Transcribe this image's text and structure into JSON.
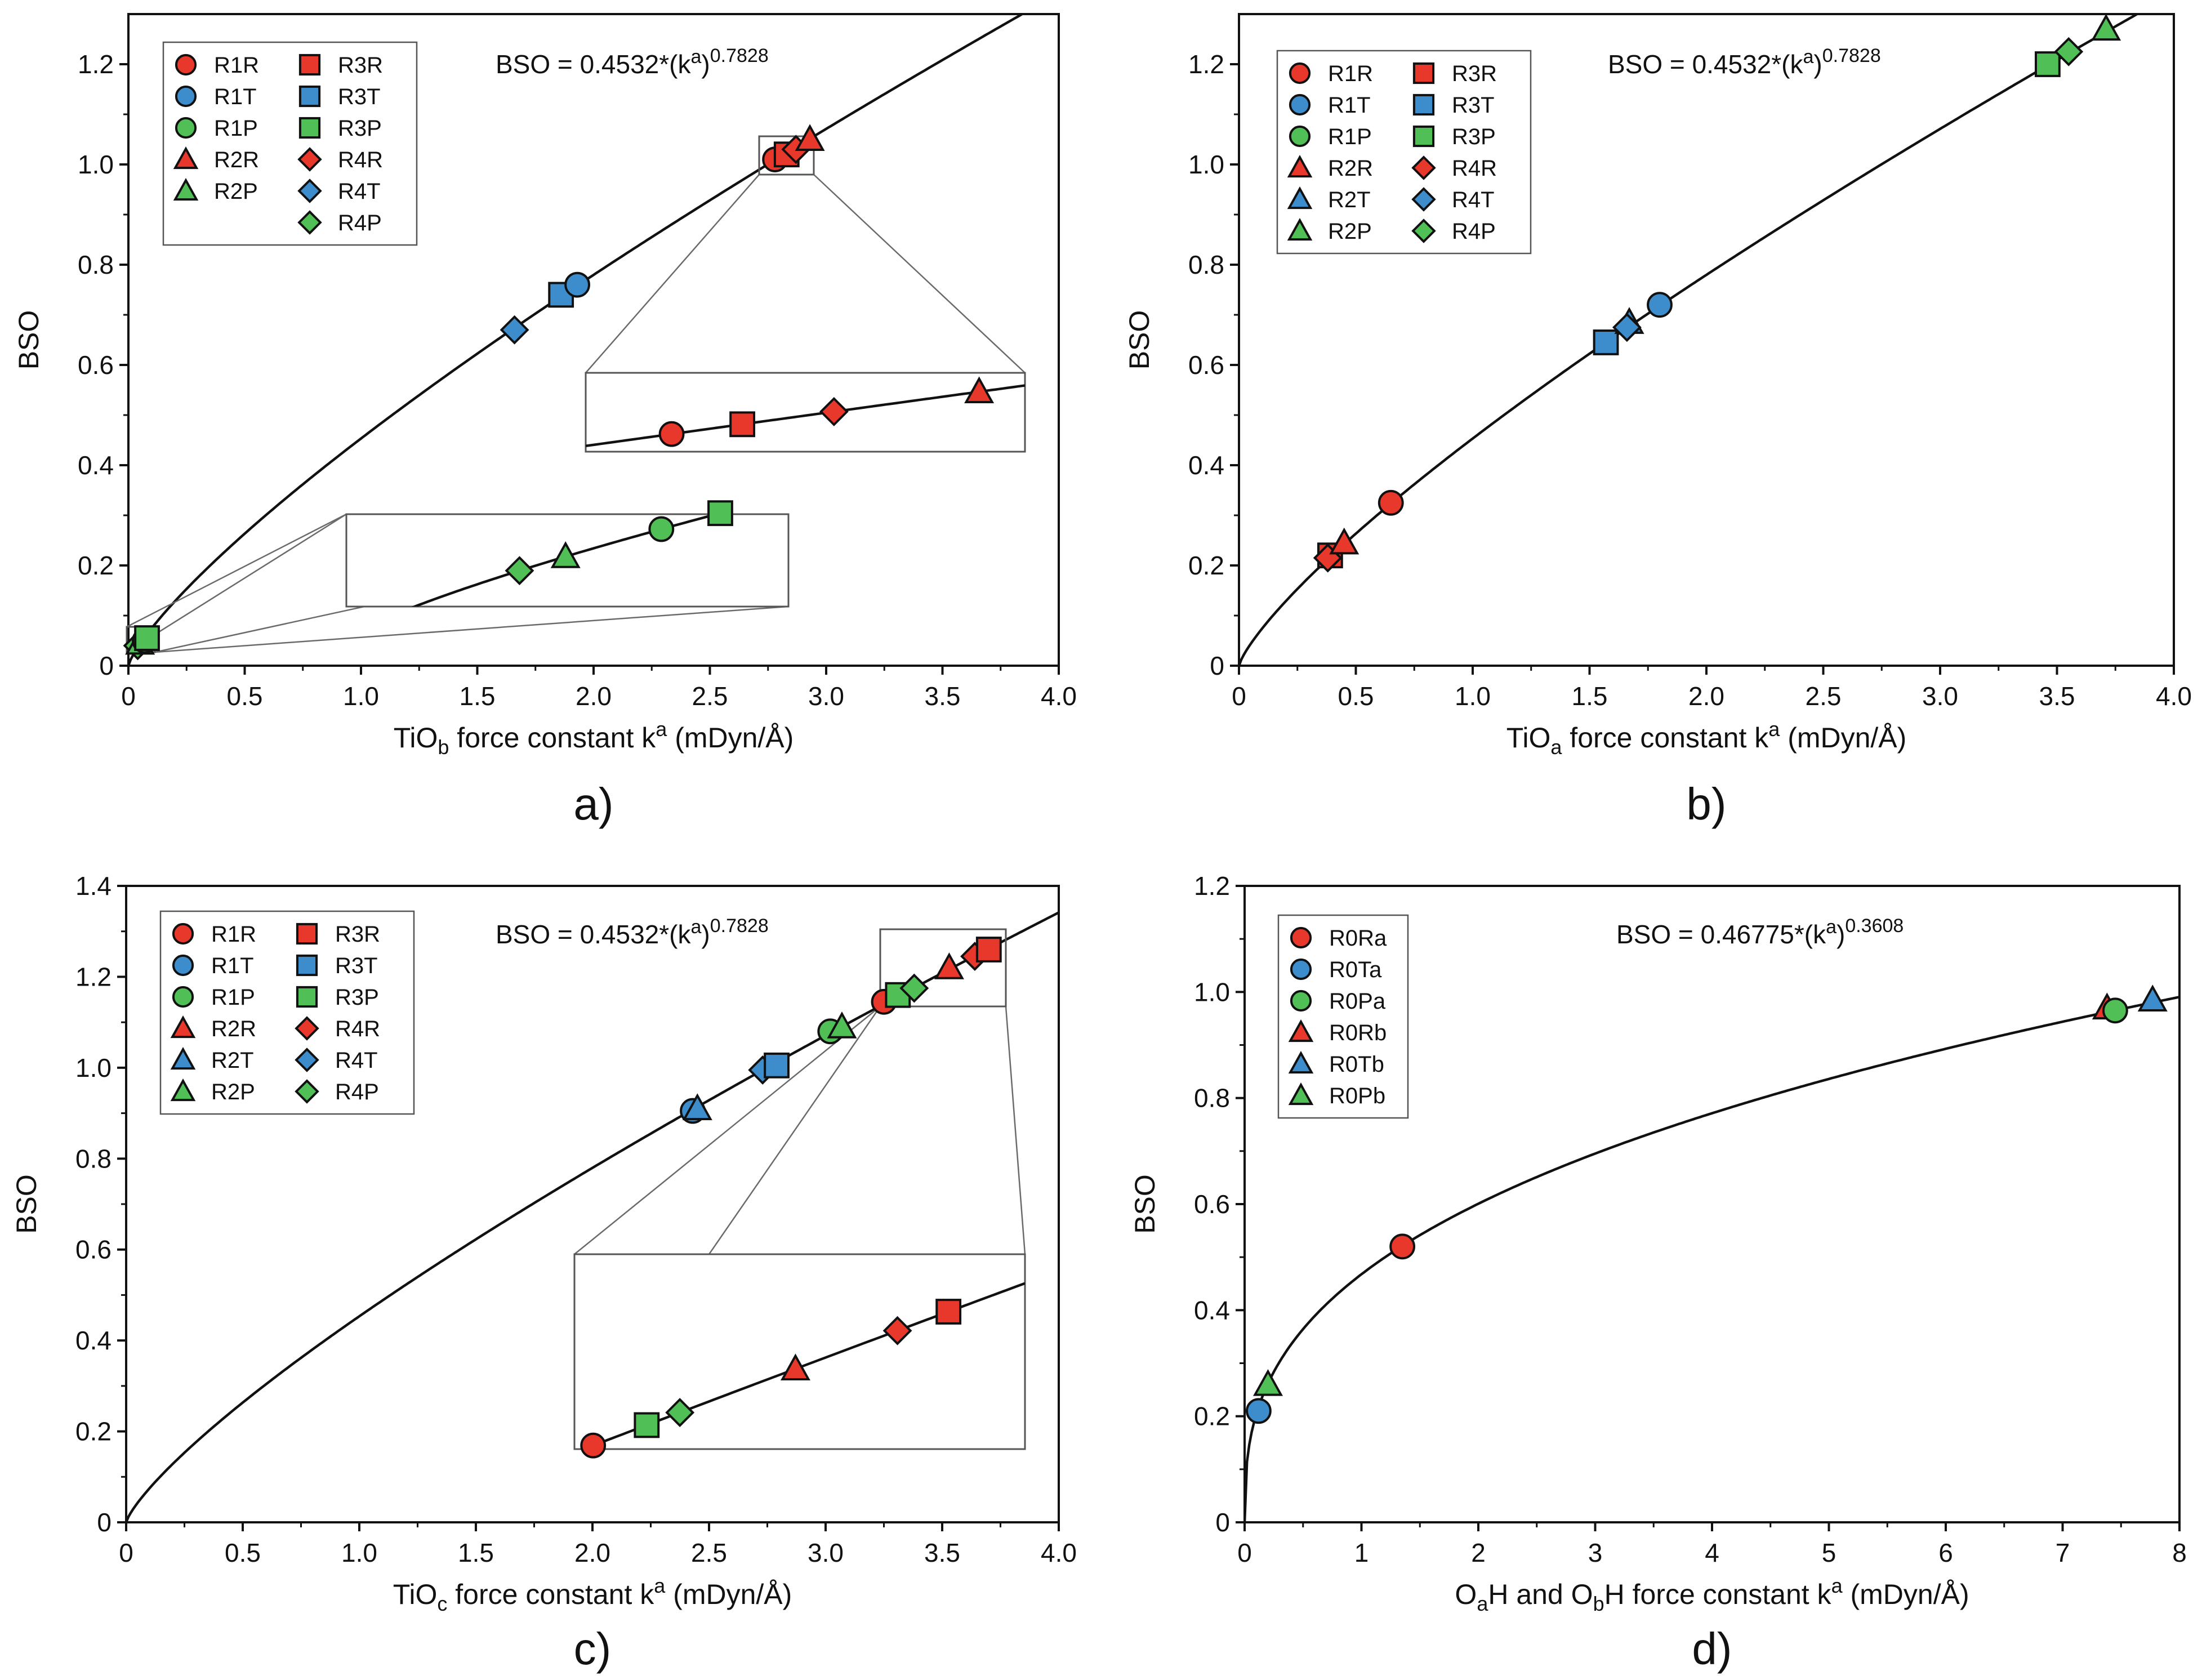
{
  "colors": {
    "R": "#e8382c",
    "T": "#3d8ccb",
    "P": "#4fbf56",
    "line": "#111111"
  },
  "chart_data": [
    {
      "id": "a",
      "type": "scatter",
      "panel_label": "a)",
      "formula": {
        "text": "BSO = 0.4532*(k",
        "sup_var": "a",
        "close": ")",
        "exp": "0.7828"
      },
      "fit": {
        "a": 0.4532,
        "b": 0.7828
      },
      "xlabel": {
        "pre": "TiO",
        "sub": "b",
        "mid": " force constant k",
        "sup": "a",
        "post": " (mDyn/Å)"
      },
      "ylabel": "BSO",
      "xlim": [
        0,
        4.0
      ],
      "ylim": [
        0,
        1.3
      ],
      "xticks": [
        "0",
        "0.5",
        "1.0",
        "1.5",
        "2.0",
        "2.5",
        "3.0",
        "3.5",
        "4.0"
      ],
      "yticks": [
        "0",
        "0.2",
        "0.4",
        "0.6",
        "0.8",
        "1.0",
        "1.2"
      ],
      "legend": {
        "columns": [
          [
            {
              "label": "R1R",
              "shape": "circle",
              "color": "R"
            },
            {
              "label": "R1T",
              "shape": "circle",
              "color": "T"
            },
            {
              "label": "R1P",
              "shape": "circle",
              "color": "P"
            },
            {
              "label": "R2R",
              "shape": "triangle",
              "color": "R"
            },
            {
              "label": "R2P",
              "shape": "triangle",
              "color": "P"
            }
          ],
          [
            {
              "label": "R3R",
              "shape": "square",
              "color": "R"
            },
            {
              "label": "R3T",
              "shape": "square",
              "color": "T"
            },
            {
              "label": "R3P",
              "shape": "square",
              "color": "P"
            },
            {
              "label": "R4R",
              "shape": "diamond",
              "color": "R"
            },
            {
              "label": "R4T",
              "shape": "diamond",
              "color": "T"
            },
            {
              "label": "R4P",
              "shape": "diamond",
              "color": "P"
            }
          ]
        ]
      },
      "points": [
        {
          "name": "R4T",
          "shape": "diamond",
          "color": "T",
          "x": 1.66,
          "y": 0.67
        },
        {
          "name": "R3T",
          "shape": "square",
          "color": "T",
          "x": 1.86,
          "y": 0.74
        },
        {
          "name": "R1T",
          "shape": "circle",
          "color": "T",
          "x": 1.93,
          "y": 0.76
        },
        {
          "name": "R1R",
          "shape": "circle",
          "color": "R",
          "x": 2.78,
          "y": 1.01
        },
        {
          "name": "R3R",
          "shape": "square",
          "color": "R",
          "x": 2.83,
          "y": 1.02
        },
        {
          "name": "R4R",
          "shape": "diamond",
          "color": "R",
          "x": 2.87,
          "y": 1.03
        },
        {
          "name": "R2R",
          "shape": "triangle",
          "color": "R",
          "x": 2.93,
          "y": 1.05
        },
        {
          "name": "R4P",
          "shape": "diamond",
          "color": "P",
          "x": 0.04,
          "y": 0.04
        },
        {
          "name": "R2P",
          "shape": "triangle",
          "color": "P",
          "x": 0.05,
          "y": 0.045
        },
        {
          "name": "R1P",
          "shape": "circle",
          "color": "P",
          "x": 0.07,
          "y": 0.05
        },
        {
          "name": "R3P",
          "shape": "square",
          "color": "P",
          "x": 0.08,
          "y": 0.055
        }
      ],
      "insets": [
        {
          "src_range": {
            "x": [
              2.7,
              2.93
            ],
            "y": [
              0.98,
              1.065
            ]
          },
          "box_range": {
            "x": [
              1.97,
              3.85
            ],
            "y": [
              0.43,
              0.59
            ]
          },
          "line_range": {
            "x": [
              2.7,
              2.94
            ],
            "y": [
              0.985,
              1.055
            ]
          },
          "points": [
            {
              "name": "R1R",
              "shape": "circle",
              "color": "R",
              "x": 2.745,
              "y": 1.003
            },
            {
              "name": "R3R",
              "shape": "square",
              "color": "R",
              "x": 2.782,
              "y": 1.013
            },
            {
              "name": "R4R",
              "shape": "diamond",
              "color": "R",
              "x": 2.83,
              "y": 1.027
            },
            {
              "name": "R2R",
              "shape": "triangle",
              "color": "R",
              "x": 2.906,
              "y": 1.049
            }
          ]
        },
        {
          "src_range": {
            "x": [
              0.0,
              0.12
            ],
            "y": [
              0.02,
              0.075
            ]
          },
          "box_range": {
            "x": [
              0.95,
              2.85
            ],
            "y": [
              0.12,
              0.3
            ]
          },
          "line_range": {
            "x": [
              0.0,
              0.12
            ],
            "y": [
              0.02,
              0.075
            ]
          },
          "points": [
            {
              "name": "R4P",
              "shape": "diamond",
              "color": "P",
              "x": 0.047,
              "y": 0.04
            },
            {
              "name": "R2P",
              "shape": "triangle",
              "color": "P",
              "x": 0.0595,
              "y": 0.0445
            },
            {
              "name": "R1P",
              "shape": "circle",
              "color": "P",
              "x": 0.0855,
              "y": 0.0515
            },
            {
              "name": "R3P",
              "shape": "square",
              "color": "P",
              "x": 0.1015,
              "y": 0.0565
            }
          ]
        }
      ]
    },
    {
      "id": "b",
      "type": "scatter",
      "panel_label": "b)",
      "formula": {
        "text": "BSO = 0.4532*(k",
        "sup_var": "a",
        "close": ")",
        "exp": "0.7828"
      },
      "fit": {
        "a": 0.4532,
        "b": 0.7828
      },
      "xlabel": {
        "pre": "TiO",
        "sub": "a",
        "mid": " force constant k",
        "sup": "a",
        "post": " (mDyn/Å)"
      },
      "ylabel": "BSO",
      "xlim": [
        0,
        4.0
      ],
      "ylim": [
        0,
        1.3
      ],
      "xticks": [
        "0",
        "0.5",
        "1.0",
        "1.5",
        "2.0",
        "2.5",
        "3.0",
        "3.5",
        "4.0"
      ],
      "yticks": [
        "0",
        "0.2",
        "0.4",
        "0.6",
        "0.8",
        "1.0",
        "1.2"
      ],
      "legend": {
        "columns": [
          [
            {
              "label": "R1R",
              "shape": "circle",
              "color": "R"
            },
            {
              "label": "R1T",
              "shape": "circle",
              "color": "T"
            },
            {
              "label": "R1P",
              "shape": "circle",
              "color": "P"
            },
            {
              "label": "R2R",
              "shape": "triangle",
              "color": "R"
            },
            {
              "label": "R2T",
              "shape": "triangle",
              "color": "T"
            },
            {
              "label": "R2P",
              "shape": "triangle",
              "color": "P"
            }
          ],
          [
            {
              "label": "R3R",
              "shape": "square",
              "color": "R"
            },
            {
              "label": "R3T",
              "shape": "square",
              "color": "T"
            },
            {
              "label": "R3P",
              "shape": "square",
              "color": "P"
            },
            {
              "label": "R4R",
              "shape": "diamond",
              "color": "R"
            },
            {
              "label": "R4T",
              "shape": "diamond",
              "color": "T"
            },
            {
              "label": "R4P",
              "shape": "diamond",
              "color": "P"
            }
          ]
        ]
      },
      "points": [
        {
          "name": "R3R",
          "shape": "square",
          "color": "R",
          "x": 0.39,
          "y": 0.22
        },
        {
          "name": "R4R",
          "shape": "diamond",
          "color": "R",
          "x": 0.38,
          "y": 0.215
        },
        {
          "name": "R2R",
          "shape": "triangle",
          "color": "R",
          "x": 0.45,
          "y": 0.245
        },
        {
          "name": "R1R",
          "shape": "circle",
          "color": "R",
          "x": 0.65,
          "y": 0.325
        },
        {
          "name": "R3T",
          "shape": "square",
          "color": "T",
          "x": 1.57,
          "y": 0.645
        },
        {
          "name": "R2T",
          "shape": "triangle",
          "color": "T",
          "x": 1.67,
          "y": 0.685
        },
        {
          "name": "R4T",
          "shape": "diamond",
          "color": "T",
          "x": 1.66,
          "y": 0.675
        },
        {
          "name": "R1T",
          "shape": "circle",
          "color": "T",
          "x": 1.8,
          "y": 0.72
        },
        {
          "name": "R3P",
          "shape": "square",
          "color": "P",
          "x": 3.46,
          "y": 1.2
        },
        {
          "name": "R4P",
          "shape": "diamond",
          "color": "P",
          "x": 3.55,
          "y": 1.225
        },
        {
          "name": "R2P",
          "shape": "triangle",
          "color": "P",
          "x": 3.71,
          "y": 1.27
        }
      ],
      "insets": []
    },
    {
      "id": "c",
      "type": "scatter",
      "panel_label": "c)",
      "formula": {
        "text": "BSO = 0.4532*(k",
        "sup_var": "a",
        "close": ")",
        "exp": "0.7828"
      },
      "fit": {
        "a": 0.4532,
        "b": 0.7828
      },
      "xlabel": {
        "pre": "TiO",
        "sub": "c",
        "mid": " force constant k",
        "sup": "a",
        "post": " (mDyn/Å)"
      },
      "ylabel": "BSO",
      "xlim": [
        0,
        4.0
      ],
      "ylim": [
        0,
        1.4
      ],
      "xticks": [
        "0",
        "0.5",
        "1.0",
        "1.5",
        "2.0",
        "2.5",
        "3.0",
        "3.5",
        "4.0"
      ],
      "yticks": [
        "0",
        "0.2",
        "0.4",
        "0.6",
        "0.8",
        "1.0",
        "1.2",
        "1.4"
      ],
      "legend": {
        "columns": [
          [
            {
              "label": "R1R",
              "shape": "circle",
              "color": "R"
            },
            {
              "label": "R1T",
              "shape": "circle",
              "color": "T"
            },
            {
              "label": "R1P",
              "shape": "circle",
              "color": "P"
            },
            {
              "label": "R2R",
              "shape": "triangle",
              "color": "R"
            },
            {
              "label": "R2T",
              "shape": "triangle",
              "color": "T"
            },
            {
              "label": "R2P",
              "shape": "triangle",
              "color": "P"
            }
          ],
          [
            {
              "label": "R3R",
              "shape": "square",
              "color": "R"
            },
            {
              "label": "R3T",
              "shape": "square",
              "color": "T"
            },
            {
              "label": "R3P",
              "shape": "square",
              "color": "P"
            },
            {
              "label": "R4R",
              "shape": "diamond",
              "color": "R"
            },
            {
              "label": "R4T",
              "shape": "diamond",
              "color": "T"
            },
            {
              "label": "R4P",
              "shape": "diamond",
              "color": "P"
            }
          ]
        ]
      },
      "points": [
        {
          "name": "R1T",
          "shape": "circle",
          "color": "T",
          "x": 2.43,
          "y": 0.905
        },
        {
          "name": "R2T",
          "shape": "triangle",
          "color": "T",
          "x": 2.45,
          "y": 0.91
        },
        {
          "name": "R4T",
          "shape": "diamond",
          "color": "T",
          "x": 2.73,
          "y": 0.995
        },
        {
          "name": "R3T",
          "shape": "square",
          "color": "T",
          "x": 2.79,
          "y": 1.005
        },
        {
          "name": "R1P",
          "shape": "circle",
          "color": "P",
          "x": 3.02,
          "y": 1.08
        },
        {
          "name": "R2P",
          "shape": "triangle",
          "color": "P",
          "x": 3.07,
          "y": 1.09
        },
        {
          "name": "R1R",
          "shape": "circle",
          "color": "R",
          "x": 3.25,
          "y": 1.145
        },
        {
          "name": "R3P",
          "shape": "square",
          "color": "P",
          "x": 3.31,
          "y": 1.16
        },
        {
          "name": "R4P",
          "shape": "diamond",
          "color": "P",
          "x": 3.38,
          "y": 1.175
        },
        {
          "name": "R2R",
          "shape": "triangle",
          "color": "R",
          "x": 3.53,
          "y": 1.22
        },
        {
          "name": "R4R",
          "shape": "diamond",
          "color": "R",
          "x": 3.64,
          "y": 1.245
        },
        {
          "name": "R3R",
          "shape": "square",
          "color": "R",
          "x": 3.7,
          "y": 1.26
        }
      ],
      "insets": [
        {
          "src_range": {
            "x": [
              3.22,
              3.75
            ],
            "y": [
              1.135,
              1.3
            ]
          },
          "box_range": {
            "x": [
              1.92,
              3.85
            ],
            "y": [
              0.155,
              0.58
            ]
          },
          "line_range": {
            "x": [
              3.22,
              3.75
            ],
            "y": [
              1.135,
              1.285
            ]
          },
          "points": [
            {
              "name": "R1R",
              "shape": "circle",
              "color": "R",
              "x": 3.242,
              "y": 1.142
            },
            {
              "name": "R3P",
              "shape": "square",
              "color": "P",
              "x": 3.305,
              "y": 1.159
            },
            {
              "name": "R4P",
              "shape": "diamond",
              "color": "P",
              "x": 3.344,
              "y": 1.17
            },
            {
              "name": "R2R",
              "shape": "triangle",
              "color": "R",
              "x": 3.48,
              "y": 1.205
            },
            {
              "name": "R4R",
              "shape": "diamond",
              "color": "R",
              "x": 3.6,
              "y": 1.236
            },
            {
              "name": "R3R",
              "shape": "square",
              "color": "R",
              "x": 3.66,
              "y": 1.253
            }
          ]
        }
      ]
    },
    {
      "id": "d",
      "type": "scatter",
      "panel_label": "d)",
      "formula": {
        "text": "BSO = 0.46775*(k",
        "sup_var": "a",
        "close": ")",
        "exp": "0.3608"
      },
      "fit": {
        "a": 0.46775,
        "b": 0.3608
      },
      "xlabel": {
        "pre": "O",
        "sub": "a",
        "mid": "H and O",
        "sub2": "b",
        "mid2": "H force constant k",
        "sup": "a",
        "post": " (mDyn/Å)"
      },
      "ylabel": "BSO",
      "xlim": [
        0,
        8
      ],
      "ylim": [
        0,
        1.2
      ],
      "xticks": [
        "0",
        "1",
        "2",
        "3",
        "4",
        "5",
        "6",
        "7",
        "8"
      ],
      "yticks": [
        "0",
        "0.2",
        "0.4",
        "0.6",
        "0.8",
        "1.0",
        "1.2"
      ],
      "legend": {
        "columns": [
          [
            {
              "label": "R0Ra",
              "shape": "circle",
              "color": "R"
            },
            {
              "label": "R0Ta",
              "shape": "circle",
              "color": "T"
            },
            {
              "label": "R0Pa",
              "shape": "circle",
              "color": "P"
            },
            {
              "label": "R0Rb",
              "shape": "triangle",
              "color": "R"
            },
            {
              "label": "R0Tb",
              "shape": "triangle",
              "color": "T"
            },
            {
              "label": "R0Pb",
              "shape": "triangle",
              "color": "P"
            }
          ]
        ]
      },
      "points": [
        {
          "name": "R0Ta",
          "shape": "circle",
          "color": "T",
          "x": 0.12,
          "y": 0.21
        },
        {
          "name": "R0Pb",
          "shape": "triangle",
          "color": "P",
          "x": 0.2,
          "y": 0.26
        },
        {
          "name": "R0Ra",
          "shape": "circle",
          "color": "R",
          "x": 1.35,
          "y": 0.52
        },
        {
          "name": "R0Rb",
          "shape": "triangle",
          "color": "R",
          "x": 7.38,
          "y": 0.97
        },
        {
          "name": "R0Pa",
          "shape": "circle",
          "color": "P",
          "x": 7.45,
          "y": 0.965
        },
        {
          "name": "R0Tb",
          "shape": "triangle",
          "color": "T",
          "x": 7.77,
          "y": 0.985
        }
      ],
      "insets": []
    }
  ]
}
